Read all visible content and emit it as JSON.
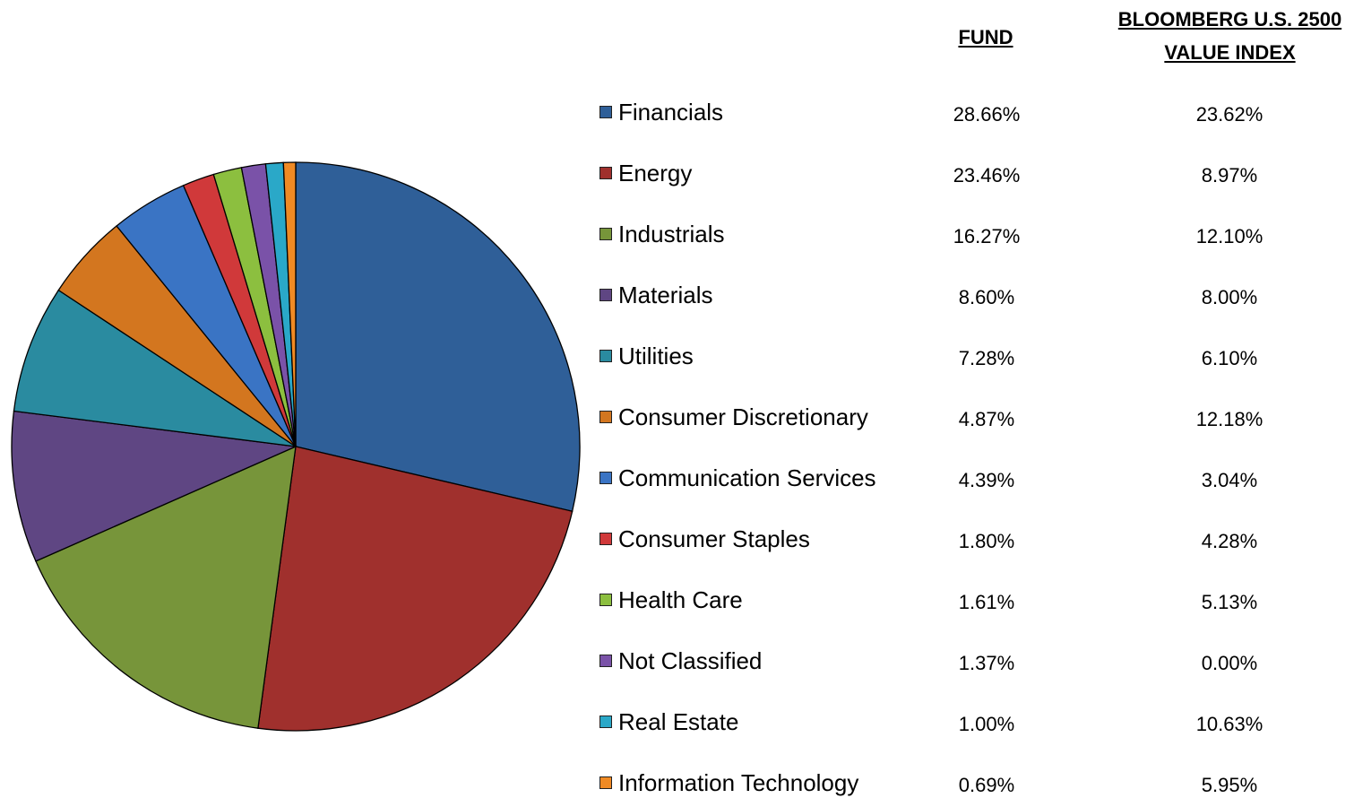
{
  "chart_data": {
    "type": "pie",
    "categories": [
      "Financials",
      "Energy",
      "Industrials",
      "Materials",
      "Utilities",
      "Consumer Discretionary",
      "Communication Services",
      "Consumer Staples",
      "Health Care",
      "Not Classified",
      "Real Estate",
      "Information Technology"
    ],
    "colors": [
      "#2f5f98",
      "#a0302d",
      "#77953a",
      "#5f4683",
      "#2a8ba0",
      "#d3761f",
      "#3a74c4",
      "#d0393a",
      "#8cbf3f",
      "#7a52a8",
      "#2aa8c8",
      "#f08a24"
    ],
    "series": [
      {
        "name": "FUND",
        "values": [
          28.66,
          23.46,
          16.27,
          8.6,
          7.28,
          4.87,
          4.39,
          1.8,
          1.61,
          1.37,
          1.0,
          0.69
        ],
        "value_labels": [
          "28.66%",
          "23.46%",
          "16.27%",
          "8.60%",
          "7.28%",
          "4.87%",
          "4.39%",
          "1.80%",
          "1.61%",
          "1.37%",
          "1.00%",
          "0.69%"
        ]
      },
      {
        "name": "BLOOMBERG U.S. 2500 VALUE INDEX",
        "values": [
          23.62,
          8.97,
          12.1,
          8.0,
          6.1,
          12.18,
          3.04,
          4.28,
          5.13,
          0.0,
          10.63,
          5.95
        ],
        "value_labels": [
          "23.62%",
          "8.97%",
          "12.10%",
          "8.00%",
          "6.10%",
          "12.18%",
          "3.04%",
          "4.28%",
          "5.13%",
          "0.00%",
          "10.63%",
          "5.95%"
        ]
      }
    ]
  }
}
